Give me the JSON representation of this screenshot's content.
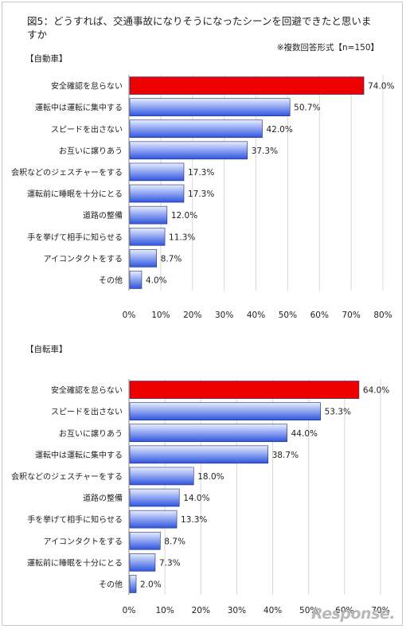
{
  "title": "図5：どうすれば、交通事故になりそうになったシーンを回避できたと思いますか",
  "note": "※複数回答形式【n=150】",
  "watermark": "Response.",
  "colors": {
    "highlight_bar": "#ee0000",
    "bar_light": "#e8eeff",
    "bar_dark": "#2f55e0",
    "grid": "#d8d8d8",
    "axis": "#888888"
  },
  "chart_data": [
    {
      "type": "bar",
      "orientation": "horizontal",
      "title": "【自動車】",
      "categories": [
        "安全確認を怠らない",
        "運転中は運転に集中する",
        "スピードを出さない",
        "お互いに譲りあう",
        "会釈などのジェスチャーをする",
        "運転前に睡眠を十分にとる",
        "道路の整備",
        "手を挙げて相手に知らせる",
        "アイコンタクトをする",
        "その他"
      ],
      "values": [
        74.0,
        50.7,
        42.0,
        37.3,
        17.3,
        17.3,
        12.0,
        11.3,
        8.7,
        4.0
      ],
      "value_labels": [
        "74.0%",
        "50.7%",
        "42.0%",
        "37.3%",
        "17.3%",
        "17.3%",
        "12.0%",
        "11.3%",
        "8.7%",
        "4.0%"
      ],
      "highlight_index": 0,
      "xlim": [
        0,
        80
      ],
      "xticks": [
        "0%",
        "10%",
        "20%",
        "30%",
        "40%",
        "50%",
        "60%",
        "70%",
        "80%"
      ],
      "grid": true
    },
    {
      "type": "bar",
      "orientation": "horizontal",
      "title": "【自転車】",
      "categories": [
        "安全確認を怠らない",
        "スピードを出さない",
        "お互いに譲りあう",
        "運転中は運転に集中する",
        "会釈などのジェスチャーをする",
        "道路の整備",
        "手を挙げて相手に知らせる",
        "アイコンタクトをする",
        "運転前に睡眠を十分にとる",
        "その他"
      ],
      "values": [
        64.0,
        53.3,
        44.0,
        38.7,
        18.0,
        14.0,
        13.3,
        8.7,
        7.3,
        2.0
      ],
      "value_labels": [
        "64.0%",
        "53.3%",
        "44.0%",
        "38.7%",
        "18.0%",
        "14.0%",
        "13.3%",
        "8.7%",
        "7.3%",
        "2.0%"
      ],
      "highlight_index": 0,
      "xlim": [
        0,
        70
      ],
      "xticks": [
        "0%",
        "10%",
        "20%",
        "30%",
        "40%",
        "50%",
        "60%",
        "70%"
      ],
      "grid": true
    }
  ]
}
